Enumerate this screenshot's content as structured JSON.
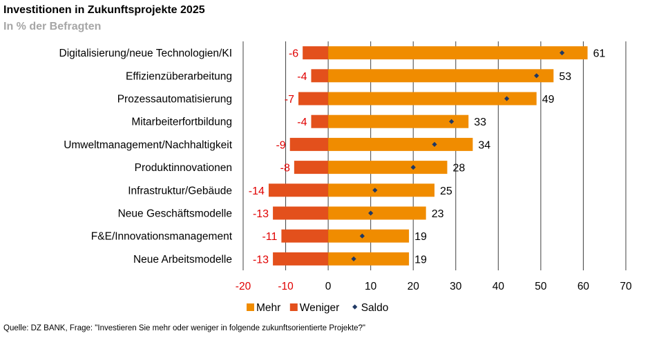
{
  "title": "Investitionen in Zukunftsprojekte 2025",
  "subtitle": "In % der Befragten",
  "source": "Quelle: DZ BANK, Frage: \"Investieren Sie mehr oder weniger in folgende zukunftsorientierte Projekte?\"",
  "colors": {
    "mehr": "#f08c00",
    "weniger": "#e3501c",
    "saldo": "#1f3864",
    "negative_text": "#e00000",
    "grid": "#404040"
  },
  "chart_data": {
    "type": "bar",
    "orientation": "horizontal",
    "categories": [
      "Digitalisierung/neue Technologien/KI",
      "Effizienzüberarbeitung",
      "Prozessautomatisierung",
      "Mitarbeiterfortbildung",
      "Umweltmanagement/Nachhaltigkeit",
      "Produktinnovationen",
      "Infrastruktur/Gebäude",
      "Neue Geschäftsmodelle",
      "F&E/Innovationsmanagement",
      "Neue Arbeitsmodelle"
    ],
    "series": [
      {
        "name": "Mehr",
        "values": [
          61,
          53,
          49,
          33,
          34,
          28,
          25,
          23,
          19,
          19
        ]
      },
      {
        "name": "Weniger",
        "values": [
          -6,
          -4,
          -7,
          -4,
          -9,
          -8,
          -14,
          -13,
          -11,
          -13
        ]
      },
      {
        "name": "Saldo",
        "values": [
          55,
          49,
          42,
          29,
          25,
          20,
          11,
          10,
          8,
          6
        ]
      }
    ],
    "xlim": [
      -20,
      70
    ],
    "xticks": [
      "-20",
      "-10",
      "0",
      "10",
      "20",
      "30",
      "40",
      "50",
      "60",
      "70"
    ],
    "grid": "vertical",
    "legend_position": "bottom"
  }
}
